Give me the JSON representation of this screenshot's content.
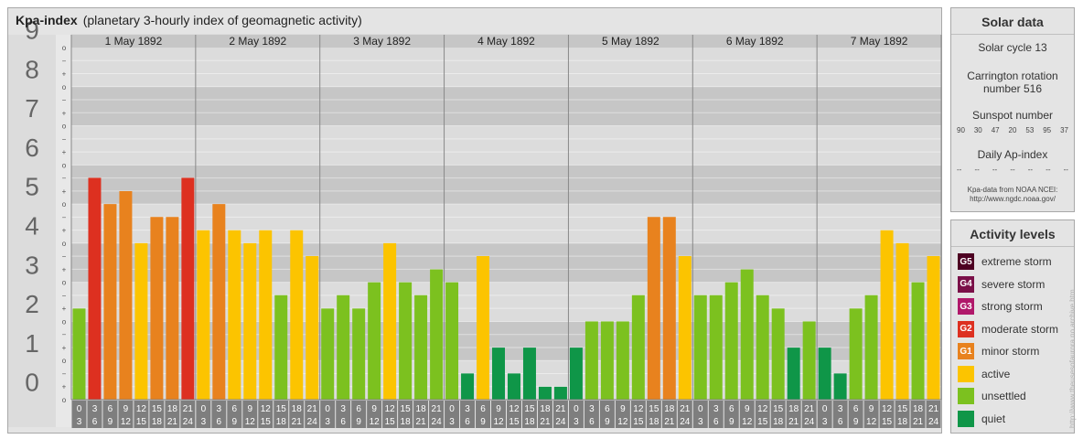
{
  "header": {
    "title": "Kpa-index",
    "subtitle": "(planetary 3-hourly index of geomagnetic activity)"
  },
  "chart_data": {
    "type": "bar",
    "y_labels": [
      "0",
      "1",
      "2",
      "3",
      "4",
      "5",
      "6",
      "7",
      "8",
      "9"
    ],
    "sub_ticks": [
      "o",
      "+",
      "−"
    ],
    "days": [
      "1 May 1892",
      "2 May 1892",
      "3 May 1892",
      "4 May 1892",
      "5 May 1892",
      "6 May 1892",
      "7 May 1892"
    ],
    "interval_starts": [
      "0",
      "3",
      "6",
      "9",
      "12",
      "15",
      "18",
      "21"
    ],
    "interval_ends": [
      "3",
      "6",
      "9",
      "12",
      "15",
      "18",
      "21",
      "24"
    ],
    "ylim": [
      0,
      9.33
    ],
    "values": [
      [
        2.33,
        5.67,
        5.0,
        5.33,
        4.0,
        4.67,
        4.67,
        5.67
      ],
      [
        4.33,
        5.0,
        4.33,
        4.0,
        4.33,
        2.67,
        4.33,
        3.67
      ],
      [
        2.33,
        2.67,
        2.33,
        3.0,
        4.0,
        3.0,
        2.67,
        3.33
      ],
      [
        3.0,
        0.67,
        3.67,
        1.33,
        0.67,
        1.33,
        0.33,
        0.33
      ],
      [
        1.33,
        2.0,
        2.0,
        2.0,
        2.67,
        4.67,
        4.67,
        3.67
      ],
      [
        2.67,
        2.67,
        3.0,
        3.33,
        2.67,
        2.33,
        1.33,
        2.0
      ],
      [
        1.33,
        0.67,
        2.33,
        2.67,
        4.33,
        4.0,
        3.0,
        3.67
      ]
    ]
  },
  "solar": {
    "title": "Solar data",
    "cycle": "Solar cycle 13",
    "carrington_line1": "Carrington rotation",
    "carrington_line2": "number 516",
    "sunspot_title": "Sunspot number",
    "sunspots": [
      "90",
      "30",
      "47",
      "20",
      "53",
      "95",
      "37"
    ],
    "ap_title": "Daily Ap-index",
    "ap_values": [
      "--",
      "--",
      "--",
      "--",
      "--",
      "--",
      "--"
    ],
    "source_line1": "Kpa-data from NOAA NCEI:",
    "source_line2": "http://www.ngdc.noaa.gov/"
  },
  "levels": {
    "title": "Activity levels",
    "items": [
      {
        "code": "G5",
        "label": "extreme storm",
        "color": "#4d0022"
      },
      {
        "code": "G4",
        "label": "severe storm",
        "color": "#7a1048"
      },
      {
        "code": "G3",
        "label": "strong storm",
        "color": "#b0186a"
      },
      {
        "code": "G2",
        "label": "moderate storm",
        "color": "#dd3020"
      },
      {
        "code": "G1",
        "label": "minor storm",
        "color": "#e8821e"
      },
      {
        "code": "",
        "label": "active",
        "color": "#fcc400"
      },
      {
        "code": "",
        "label": "unsettled",
        "color": "#7cc11f"
      },
      {
        "code": "",
        "label": "quiet",
        "color": "#0f9648"
      }
    ]
  },
  "side_caption": "http://www.theusesofaurora.no archive.htm",
  "colors": {
    "quiet": "#0f9648",
    "unsettled": "#7cc11f",
    "active": "#fcc400",
    "g1": "#e8821e",
    "g2": "#dd3020",
    "bg_dark": "#c6c6c6",
    "bg_light": "#dcdcdc",
    "axis_box": "#7e7e7e",
    "axis_text": "#666666"
  }
}
